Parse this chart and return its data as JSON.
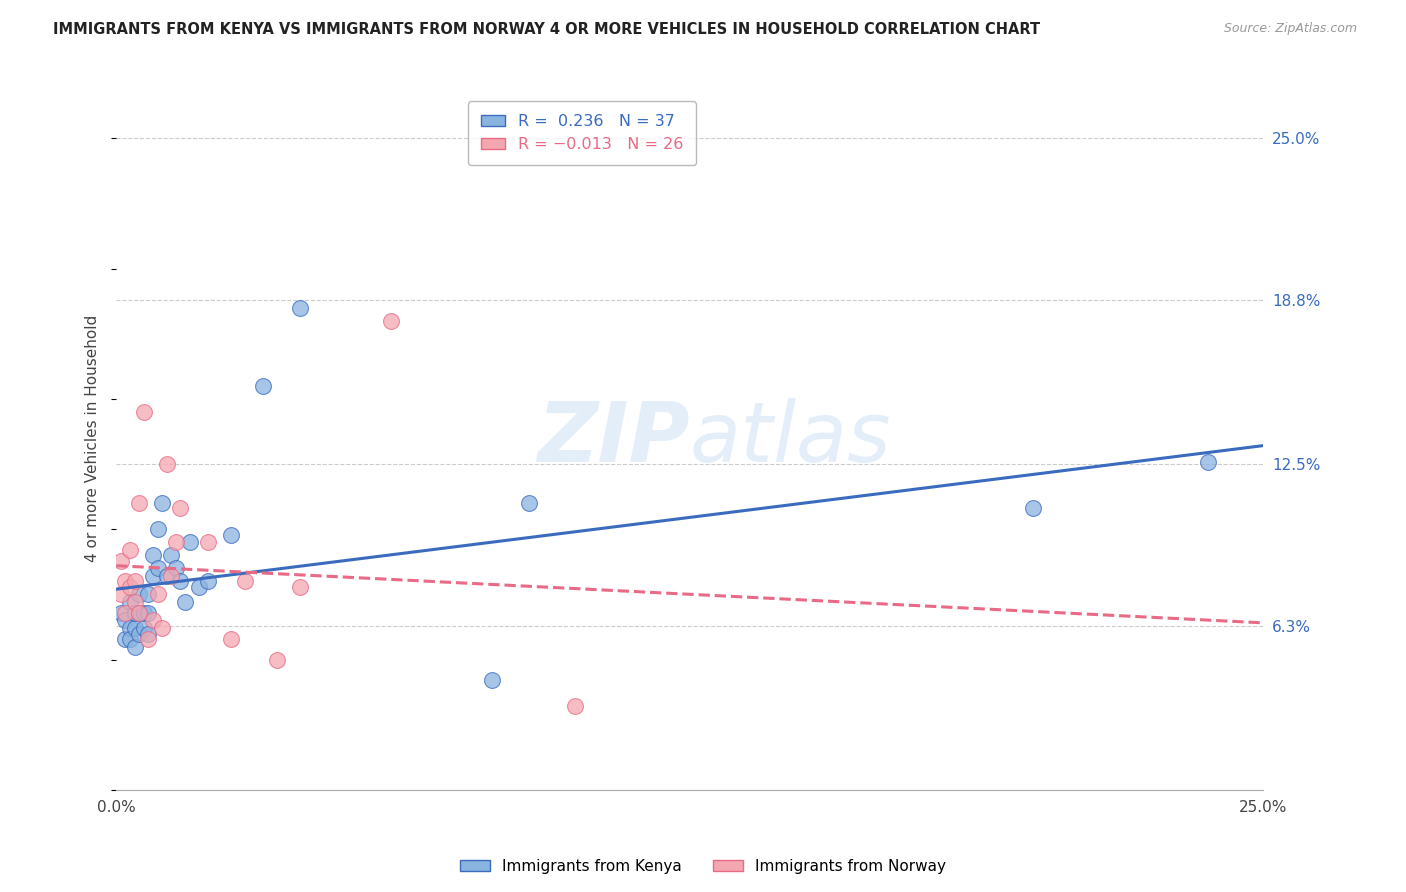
{
  "title": "IMMIGRANTS FROM KENYA VS IMMIGRANTS FROM NORWAY 4 OR MORE VEHICLES IN HOUSEHOLD CORRELATION CHART",
  "source": "Source: ZipAtlas.com",
  "ylabel": "4 or more Vehicles in Household",
  "ytick_labels": [
    "6.3%",
    "12.5%",
    "18.8%",
    "25.0%"
  ],
  "ytick_values": [
    0.063,
    0.125,
    0.188,
    0.25
  ],
  "xtick_values": [
    0.0,
    0.0625,
    0.125,
    0.1875,
    0.25
  ],
  "xlim": [
    0.0,
    0.25
  ],
  "ylim": [
    0.0,
    0.27
  ],
  "legend_kenya": "Immigrants from Kenya",
  "legend_norway": "Immigrants from Norway",
  "R_kenya": 0.236,
  "N_kenya": 37,
  "R_norway": -0.013,
  "N_norway": 26,
  "color_kenya": "#8ab4e0",
  "color_norway": "#f4a7b0",
  "color_kenya_line": "#3a6bbf",
  "color_norway_line": "#e86a85",
  "watermark_color": "#c8dff5",
  "kenya_x": [
    0.001,
    0.002,
    0.002,
    0.003,
    0.003,
    0.003,
    0.004,
    0.004,
    0.004,
    0.005,
    0.005,
    0.005,
    0.006,
    0.006,
    0.007,
    0.007,
    0.007,
    0.008,
    0.008,
    0.009,
    0.009,
    0.01,
    0.011,
    0.012,
    0.013,
    0.014,
    0.015,
    0.016,
    0.018,
    0.02,
    0.025,
    0.032,
    0.04,
    0.082,
    0.09,
    0.2,
    0.238
  ],
  "kenya_y": [
    0.068,
    0.058,
    0.065,
    0.062,
    0.058,
    0.072,
    0.055,
    0.062,
    0.068,
    0.06,
    0.068,
    0.075,
    0.062,
    0.068,
    0.06,
    0.068,
    0.075,
    0.09,
    0.082,
    0.1,
    0.085,
    0.11,
    0.082,
    0.09,
    0.085,
    0.08,
    0.072,
    0.095,
    0.078,
    0.08,
    0.098,
    0.155,
    0.185,
    0.042,
    0.11,
    0.108,
    0.126
  ],
  "norway_x": [
    0.001,
    0.001,
    0.002,
    0.002,
    0.003,
    0.003,
    0.004,
    0.004,
    0.005,
    0.005,
    0.006,
    0.007,
    0.008,
    0.009,
    0.01,
    0.011,
    0.012,
    0.013,
    0.014,
    0.02,
    0.025,
    0.028,
    0.035,
    0.04,
    0.06,
    0.1
  ],
  "norway_y": [
    0.075,
    0.088,
    0.08,
    0.068,
    0.078,
    0.092,
    0.072,
    0.08,
    0.068,
    0.11,
    0.145,
    0.058,
    0.065,
    0.075,
    0.062,
    0.125,
    0.082,
    0.095,
    0.108,
    0.095,
    0.058,
    0.08,
    0.05,
    0.078,
    0.18,
    0.032
  ]
}
